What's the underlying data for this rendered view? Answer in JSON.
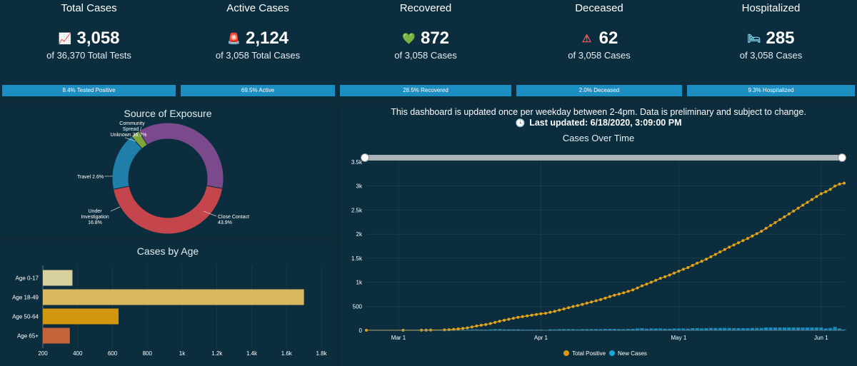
{
  "kpis": [
    {
      "title": "Total Cases",
      "value": "3,058",
      "icon": "chart-up-icon",
      "glyph": "📈",
      "sub": "of 36,370 Total Tests",
      "bar": "8.4% Tested Positive",
      "color": "#ffffff"
    },
    {
      "title": "Active Cases",
      "value": "2,124",
      "icon": "siren-icon",
      "glyph": "🚨",
      "sub": "of 3,058 Total Cases",
      "bar": "69.5% Active",
      "color": "#f2c230"
    },
    {
      "title": "Recovered",
      "value": "872",
      "icon": "heart-plus-icon",
      "glyph": "💚",
      "sub": "of 3,058 Cases",
      "bar": "28.5% Recovered",
      "color": "#7fd13b"
    },
    {
      "title": "Deceased",
      "value": "62",
      "icon": "warning-icon",
      "glyph": "⚠",
      "sub": "of 3,058 Cases",
      "bar": "2.0% Deceased",
      "color": "#f05a5a"
    },
    {
      "title": "Hospitalized",
      "value": "285",
      "icon": "bed-icon",
      "glyph": "🛏",
      "sub": "of 3,058 Cases",
      "bar": "9.3% Hospitalized",
      "color": "#7ccfe8"
    }
  ],
  "exposure": {
    "title": "Source of Exposure",
    "chart_data": {
      "type": "pie",
      "slices": [
        {
          "label": "Community Spread / Unknown 36.7%",
          "value": 36.7,
          "color": "#7a4a8c"
        },
        {
          "label": "Close Contact 43.9%",
          "value": 43.9,
          "color": "#c4454b"
        },
        {
          "label": "Under Investigation 16.8%",
          "value": 16.8,
          "color": "#1f7fa8"
        },
        {
          "label": "Travel 2.6%",
          "value": 2.6,
          "color": "#7ea63a"
        }
      ]
    },
    "labels": {
      "community": [
        "Community",
        "Spread /",
        "Unknown 36.7%"
      ],
      "travel": "Travel 2.6%",
      "under": [
        "Under",
        "Investigation",
        "16.8%"
      ],
      "close": [
        "Close Contact",
        "43.9%"
      ]
    }
  },
  "age": {
    "title": "Cases by Age",
    "chart_data": {
      "type": "bar",
      "categories": [
        "Age 0-17",
        "Age 18-49",
        "Age 50-64",
        "Age 65+"
      ],
      "values": [
        370,
        1700,
        635,
        355
      ],
      "colors": [
        "#d8cf9e",
        "#d8b960",
        "#d2960f",
        "#c7633a"
      ],
      "xlim": [
        200,
        1800
      ],
      "ticks": [
        200,
        400,
        600,
        800,
        1000,
        1200,
        1400,
        1600,
        1800
      ],
      "tick_labels": [
        "200",
        "400",
        "600",
        "800",
        "1k",
        "1.2k",
        "1.4k",
        "1.6k",
        "1.8k"
      ]
    }
  },
  "notice": {
    "line1": "This dashboard is updated once per weekday between 2-4pm. Data is preliminary and subject to change.",
    "clock_glyph": "🕓",
    "line2": "Last updated: 6/18/2020, 3:09:00 PM"
  },
  "timeline": {
    "title": "Cases Over Time",
    "legend": {
      "total": "Total Positive",
      "new": "New Cases"
    },
    "chart_data": {
      "type": "line",
      "ylim": [
        0,
        3500
      ],
      "yticks": [
        0,
        500,
        1000,
        1500,
        2000,
        2500,
        3000,
        3500
      ],
      "ytick_labels": [
        "0",
        "500",
        "1k",
        "1.5k",
        "2k",
        "2.5k",
        "3k",
        "3.5k"
      ],
      "x_labels": [
        {
          "label": "Mar 1",
          "day": 7
        },
        {
          "label": "Apr 1",
          "day": 38
        },
        {
          "label": "May 1",
          "day": 68
        },
        {
          "label": "Jun 1",
          "day": 99
        }
      ],
      "days": [
        0,
        8,
        12,
        13,
        14,
        17,
        18,
        19,
        20,
        21,
        22,
        23,
        24,
        25,
        26,
        27,
        28,
        29,
        30,
        31,
        32,
        33,
        34,
        35,
        36,
        37,
        38,
        39,
        40,
        41,
        42,
        43,
        44,
        45,
        46,
        47,
        48,
        49,
        50,
        51,
        52,
        53,
        54,
        55,
        56,
        57,
        58,
        59,
        60,
        61,
        62,
        63,
        64,
        65,
        66,
        67,
        68,
        69,
        70,
        71,
        72,
        73,
        74,
        75,
        76,
        77,
        78,
        79,
        80,
        81,
        82,
        83,
        84,
        85,
        86,
        87,
        88,
        89,
        90,
        91,
        92,
        93,
        94,
        95,
        96,
        97,
        98,
        99,
        100,
        101,
        102,
        103,
        104
      ],
      "total": [
        1,
        2,
        3,
        4,
        6,
        9,
        13,
        20,
        30,
        40,
        52,
        70,
        90,
        105,
        120,
        140,
        165,
        190,
        210,
        230,
        250,
        270,
        285,
        300,
        315,
        330,
        345,
        355,
        375,
        395,
        420,
        445,
        470,
        495,
        515,
        540,
        565,
        590,
        615,
        640,
        670,
        700,
        730,
        755,
        780,
        810,
        840,
        880,
        925,
        960,
        1000,
        1040,
        1080,
        1115,
        1150,
        1190,
        1230,
        1270,
        1305,
        1350,
        1395,
        1435,
        1480,
        1530,
        1580,
        1630,
        1680,
        1730,
        1775,
        1820,
        1865,
        1910,
        1960,
        2010,
        2060,
        2120,
        2180,
        2240,
        2300,
        2360,
        2420,
        2480,
        2540,
        2600,
        2660,
        2720,
        2780,
        2840,
        2880,
        2930,
        3000,
        3040,
        3058
      ],
      "new": [
        1,
        1,
        1,
        1,
        2,
        3,
        4,
        7,
        10,
        10,
        12,
        18,
        20,
        15,
        15,
        20,
        25,
        25,
        20,
        20,
        20,
        20,
        15,
        15,
        15,
        15,
        15,
        10,
        20,
        20,
        25,
        25,
        25,
        25,
        20,
        25,
        25,
        25,
        25,
        25,
        30,
        30,
        30,
        25,
        25,
        30,
        30,
        40,
        45,
        35,
        40,
        40,
        40,
        35,
        35,
        40,
        40,
        40,
        35,
        45,
        45,
        40,
        45,
        50,
        50,
        50,
        50,
        50,
        45,
        45,
        45,
        45,
        50,
        50,
        50,
        60,
        60,
        60,
        60,
        60,
        60,
        60,
        60,
        60,
        60,
        60,
        60,
        60,
        40,
        50,
        70,
        40,
        18
      ]
    }
  }
}
